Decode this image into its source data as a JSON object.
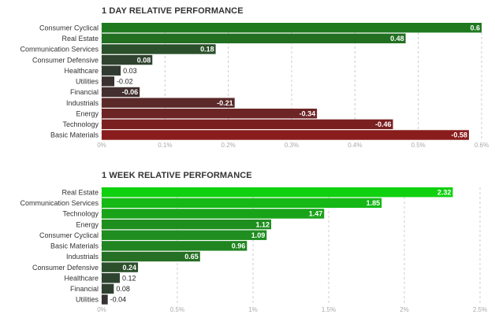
{
  "chart_data": [
    {
      "type": "bar",
      "orientation": "horizontal",
      "title": "1 DAY RELATIVE PERFORMANCE",
      "categories": [
        "Consumer Cyclical",
        "Real Estate",
        "Communication Services",
        "Consumer Defensive",
        "Healthcare",
        "Utilities",
        "Financial",
        "Industrials",
        "Energy",
        "Technology",
        "Basic Materials"
      ],
      "values": [
        0.6,
        0.48,
        0.18,
        0.08,
        0.03,
        -0.02,
        -0.06,
        -0.21,
        -0.34,
        -0.46,
        -0.58
      ],
      "value_labels": [
        "0.6",
        "0.48",
        "0.18",
        "0.08",
        "0.03",
        "-0.02",
        "-0.06",
        "-0.21",
        "-0.34",
        "-0.46",
        "-0.58"
      ],
      "xlim": [
        0,
        0.6
      ],
      "x_ticks": [
        0,
        0.1,
        0.2,
        0.3,
        0.4,
        0.5,
        0.6
      ],
      "x_tick_labels": [
        "0%",
        "0.1%",
        "0.2%",
        "0.3%",
        "0.4%",
        "0.5%",
        "0.6%"
      ],
      "grid": "vertical dashed",
      "bar_encoding": "absolute value, green for positive, red for negative",
      "colors": {
        "positive": "#1f7a1f",
        "negative": "#8b1c1c",
        "neutral": "#333333"
      }
    },
    {
      "type": "bar",
      "orientation": "horizontal",
      "title": "1 WEEK RELATIVE PERFORMANCE",
      "categories": [
        "Real Estate",
        "Communication Services",
        "Technology",
        "Energy",
        "Consumer Cyclical",
        "Basic Materials",
        "Industrials",
        "Consumer Defensive",
        "Healthcare",
        "Financial",
        "Utilities"
      ],
      "values": [
        2.32,
        1.85,
        1.47,
        1.12,
        1.09,
        0.96,
        0.65,
        0.24,
        0.12,
        0.08,
        -0.04
      ],
      "value_labels": [
        "2.32",
        "1.85",
        "1.47",
        "1.12",
        "1.09",
        "0.96",
        "0.65",
        "0.24",
        "0.12",
        "0.08",
        "-0.04"
      ],
      "xlim": [
        0,
        2.5
      ],
      "x_ticks": [
        0,
        0.5,
        1,
        1.5,
        2,
        2.5
      ],
      "x_tick_labels": [
        "0%",
        "0.5%",
        "1%",
        "1.5%",
        "2%",
        "2.5%"
      ],
      "grid": "vertical dashed",
      "bar_encoding": "absolute value, green for positive, red for negative",
      "colors": {
        "positive": "#0fd10f",
        "negative": "#8b1c1c",
        "neutral": "#333333"
      }
    }
  ]
}
